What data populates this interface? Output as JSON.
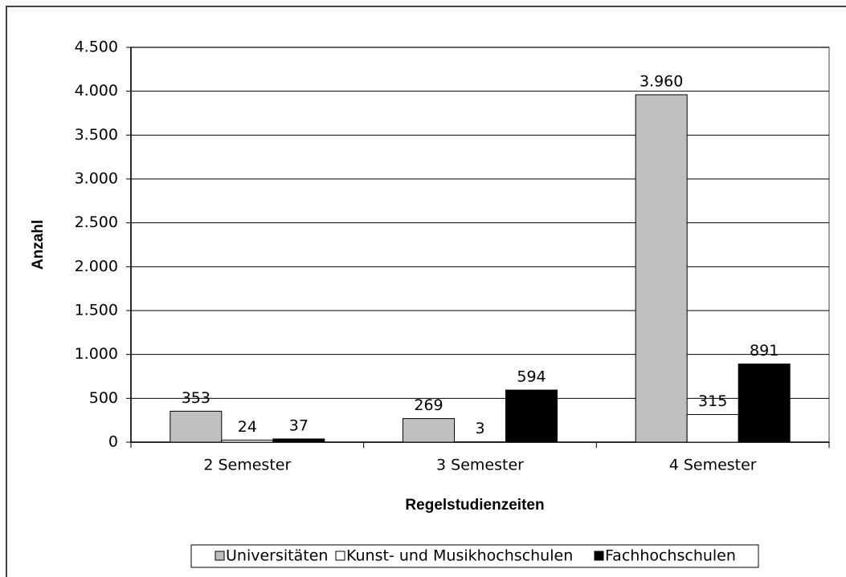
{
  "chart_data": {
    "type": "bar",
    "x_label": "Regelstudienzeiten",
    "y_label": "Anzahl",
    "categories": [
      "2 Semester",
      "3 Semester",
      "4 Semester"
    ],
    "series": [
      {
        "name": "Universitäten",
        "color": "#c0c0c0",
        "values": [
          353,
          269,
          3960
        ],
        "value_labels": [
          "353",
          "269",
          "3.960"
        ]
      },
      {
        "name": "Kunst- und Musikhochschulen",
        "color": "#ffffff",
        "values": [
          24,
          3,
          315
        ]
      },
      {
        "name": "Fachhochschulen",
        "color": "#000000",
        "values": [
          37,
          594,
          891
        ]
      }
    ],
    "ylim": [
      0,
      4500
    ],
    "yticks": [
      0,
      500,
      {
        "value": 1000,
        "label": "1.000"
      },
      {
        "value": 1500,
        "label": "1.500"
      },
      {
        "value": 2000,
        "label": "2.000"
      },
      {
        "value": 2500,
        "label": "2.500"
      },
      {
        "value": 3000,
        "label": "3.000"
      },
      {
        "value": 3500,
        "label": "3.500"
      },
      {
        "value": 4000,
        "label": "4.000"
      },
      {
        "value": 4500,
        "label": "4.500"
      }
    ],
    "grid": true
  }
}
